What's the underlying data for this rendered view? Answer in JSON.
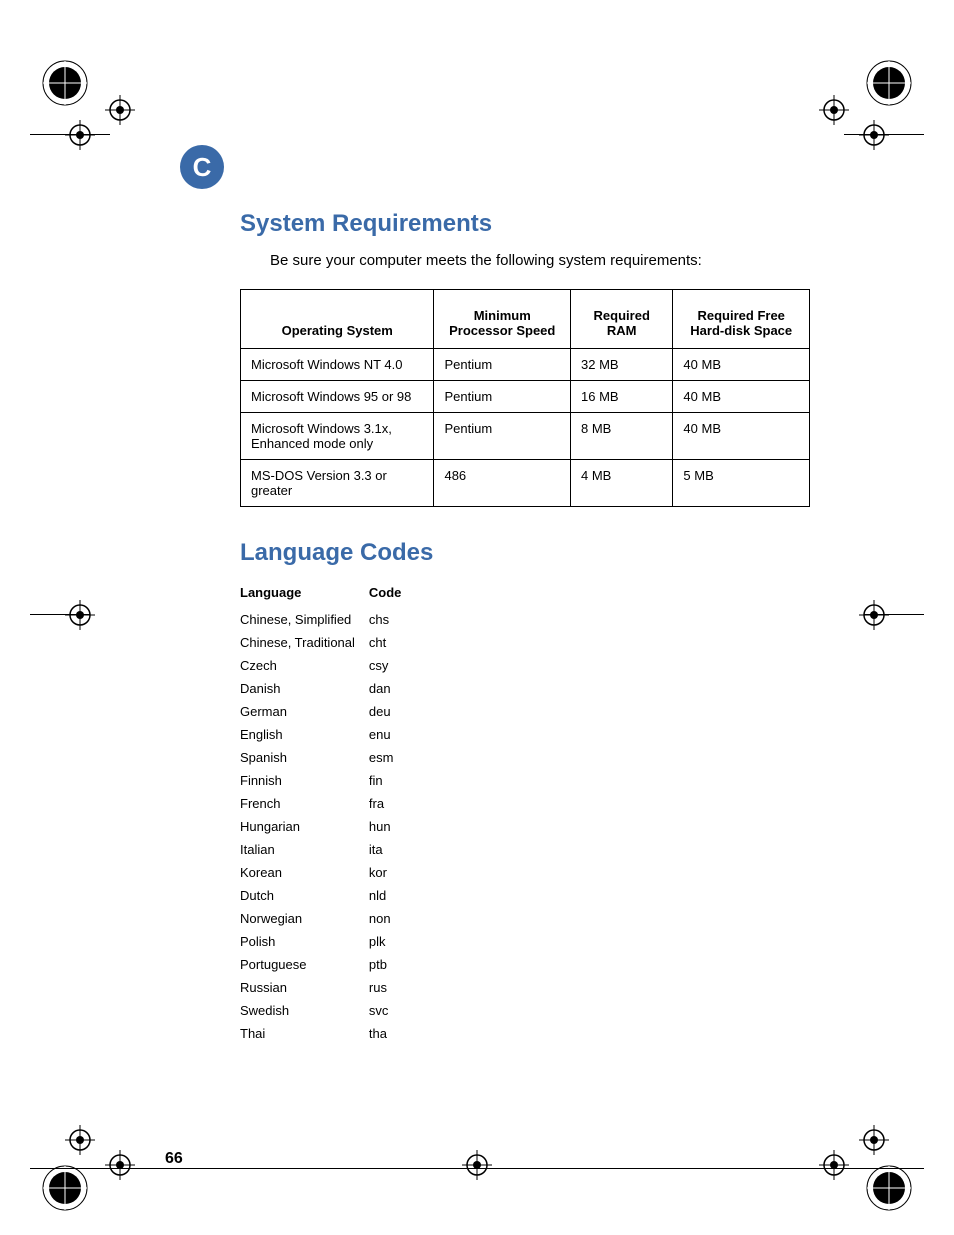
{
  "chapter_letter": "C",
  "page_number": "66",
  "section1": {
    "title": "System Requirements",
    "intro": "Be sure your computer meets the following system requirements:",
    "table": {
      "columns": [
        "Operating System",
        "Minimum Processor Speed",
        "Required RAM",
        "Required Free Hard-disk Space"
      ],
      "rows": [
        [
          "Microsoft Windows NT 4.0",
          "Pentium",
          "32 MB",
          "40 MB"
        ],
        [
          "Microsoft Windows 95 or 98",
          "Pentium",
          "16 MB",
          "40 MB"
        ],
        [
          "Microsoft Windows 3.1x, Enhanced mode only",
          "Pentium",
          "8 MB",
          "40 MB"
        ],
        [
          "MS-DOS Version 3.3 or greater",
          "486",
          "4 MB",
          "5 MB"
        ]
      ],
      "col_widths": [
        "34%",
        "24%",
        "18%",
        "24%"
      ]
    }
  },
  "section2": {
    "title": "Language Codes",
    "table": {
      "columns": [
        "Language",
        "Code"
      ],
      "rows": [
        [
          "Chinese, Simplified",
          "chs"
        ],
        [
          "Chinese, Traditional",
          "cht"
        ],
        [
          "Czech",
          "csy"
        ],
        [
          "Danish",
          "dan"
        ],
        [
          "German",
          "deu"
        ],
        [
          "English",
          "enu"
        ],
        [
          "Spanish",
          "esm"
        ],
        [
          "Finnish",
          "fin"
        ],
        [
          "French",
          "fra"
        ],
        [
          "Hungarian",
          "hun"
        ],
        [
          "Italian",
          "ita"
        ],
        [
          "Korean",
          "kor"
        ],
        [
          "Dutch",
          "nld"
        ],
        [
          "Norwegian",
          "non"
        ],
        [
          "Polish",
          "plk"
        ],
        [
          "Portuguese",
          "ptb"
        ],
        [
          "Russian",
          "rus"
        ],
        [
          "Swedish",
          "svc"
        ],
        [
          "Thai",
          "tha"
        ]
      ]
    }
  },
  "colors": {
    "heading": "#3a6aa8",
    "text": "#000000",
    "background": "#ffffff",
    "table_border": "#000000"
  }
}
